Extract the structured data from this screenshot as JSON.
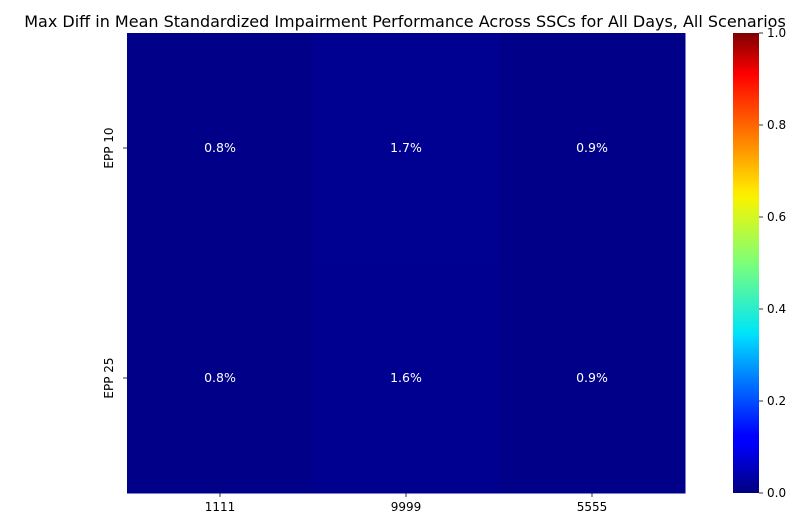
{
  "chart_data": {
    "type": "heatmap",
    "title": "Max Diff in Mean Standardized Impairment Performance Across SSCs for All Days, All Scenarios",
    "x_categories": [
      "1111",
      "9999",
      "5555"
    ],
    "y_categories": [
      "EPP 10",
      "EPP 25"
    ],
    "values": [
      [
        0.008,
        0.017,
        0.009
      ],
      [
        0.008,
        0.016,
        0.009
      ]
    ],
    "cell_labels": [
      [
        "0.8%",
        "1.7%",
        "0.9%"
      ],
      [
        "0.8%",
        "1.6%",
        "0.9%"
      ]
    ],
    "colormap": "jet",
    "vmin": 0.0,
    "vmax": 1.0,
    "colorbar_ticks": [
      "0.0",
      "0.2",
      "0.4",
      "0.6",
      "0.8",
      "1.0"
    ],
    "colorbar_tick_values": [
      0.0,
      0.2,
      0.4,
      0.6,
      0.8,
      1.0
    ],
    "annotation_color": "#ffffff"
  }
}
